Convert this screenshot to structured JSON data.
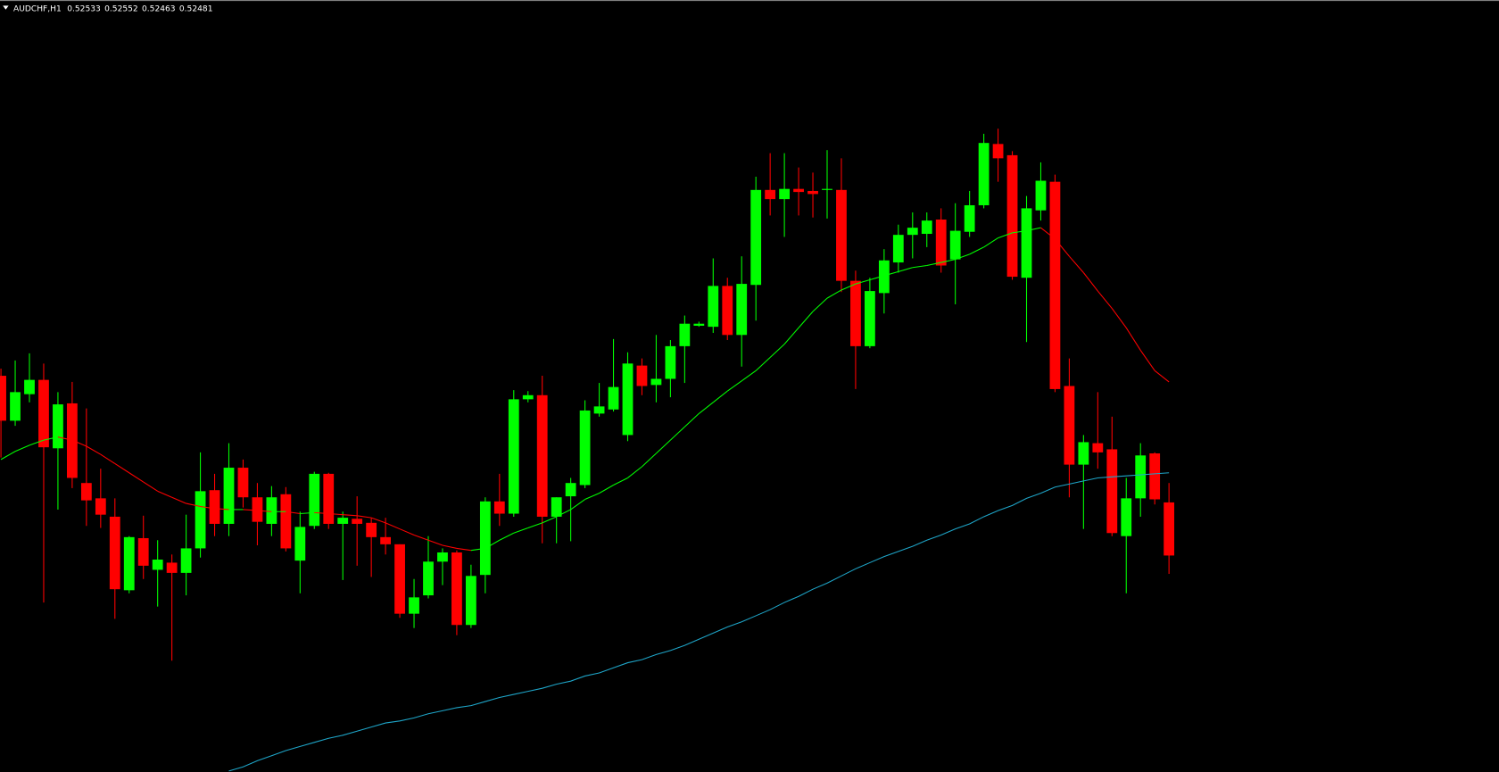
{
  "chart_data": {
    "type": "candlestick",
    "title": "AUDCHF,H1",
    "up_color": "#00ff00",
    "down_color": "#ff0000",
    "background": "#000000",
    "ylim": [
      0.52269,
      0.53025
    ],
    "open": [
      0.52657,
      0.52613,
      0.52639,
      0.52653,
      0.52586,
      0.5263,
      0.52552,
      0.52537,
      0.52519,
      0.52447,
      0.52498,
      0.52467,
      0.52474,
      0.52464,
      0.52488,
      0.52545,
      0.52512,
      0.52567,
      0.52538,
      0.52512,
      0.52541,
      0.52476,
      0.5251,
      0.52561,
      0.52512,
      0.52517,
      0.52513,
      0.52499,
      0.52492,
      0.52424,
      0.52442,
      0.52475,
      0.52484,
      0.52413,
      0.52462,
      0.52534,
      0.52522,
      0.52634,
      0.52638,
      0.52519,
      0.52539,
      0.5255,
      0.5262,
      0.52624,
      0.52599,
      0.52667,
      0.52648,
      0.52654,
      0.52686,
      0.52706,
      0.52705,
      0.52745,
      0.52697,
      0.52746,
      0.52839,
      0.5283,
      0.5284,
      0.52838,
      0.52839,
      0.52839,
      0.5275,
      0.52686,
      0.52738,
      0.52768,
      0.52795,
      0.52796,
      0.5281,
      0.52771,
      0.52798,
      0.52824,
      0.52884,
      0.52873,
      0.52753,
      0.52819,
      0.52847,
      0.52647,
      0.5257,
      0.52591,
      0.52585,
      0.525,
      0.52537,
      0.52581,
      0.52533
    ],
    "high": [
      0.52664,
      0.52672,
      0.52679,
      0.52669,
      0.52641,
      0.52651,
      0.52625,
      0.52566,
      0.52537,
      0.525,
      0.5252,
      0.52496,
      0.52482,
      0.52521,
      0.52582,
      0.52561,
      0.52591,
      0.52575,
      0.52552,
      0.52549,
      0.52548,
      0.52524,
      0.52563,
      0.52562,
      0.52524,
      0.52539,
      0.52518,
      0.52518,
      0.52492,
      0.52458,
      0.525,
      0.52488,
      0.52486,
      0.52472,
      0.52538,
      0.52561,
      0.52643,
      0.52642,
      0.52657,
      0.52538,
      0.52557,
      0.52633,
      0.5265,
      0.52693,
      0.5268,
      0.52674,
      0.52697,
      0.52692,
      0.52716,
      0.5271,
      0.52772,
      0.52753,
      0.52774,
      0.52852,
      0.52875,
      0.52875,
      0.52861,
      0.52856,
      0.52878,
      0.5287,
      0.5276,
      0.52753,
      0.52781,
      0.52805,
      0.52817,
      0.52817,
      0.52821,
      0.52826,
      0.52838,
      0.52894,
      0.52899,
      0.52877,
      0.52833,
      0.52866,
      0.52854,
      0.52674,
      0.52599,
      0.52641,
      0.52617,
      0.52557,
      0.52591,
      0.52582,
      0.52552
    ],
    "low": [
      0.52577,
      0.52608,
      0.52631,
      0.52435,
      0.52526,
      0.52547,
      0.5251,
      0.52508,
      0.52419,
      0.52444,
      0.52458,
      0.52431,
      0.52378,
      0.52442,
      0.52479,
      0.525,
      0.525,
      0.52528,
      0.52491,
      0.525,
      0.52485,
      0.52444,
      0.52507,
      0.52507,
      0.52457,
      0.52471,
      0.5246,
      0.52482,
      0.5242,
      0.5241,
      0.52439,
      0.52452,
      0.52403,
      0.5241,
      0.52444,
      0.5251,
      0.52519,
      0.52631,
      0.52493,
      0.52493,
      0.52495,
      0.52547,
      0.52617,
      0.52622,
      0.52593,
      0.52638,
      0.52631,
      0.52636,
      0.5265,
      0.52705,
      0.52699,
      0.52692,
      0.52666,
      0.52711,
      0.52814,
      0.52793,
      0.52814,
      0.52812,
      0.52811,
      0.52739,
      0.52644,
      0.52684,
      0.52718,
      0.52758,
      0.52772,
      0.52783,
      0.52758,
      0.52727,
      0.52793,
      0.52821,
      0.52847,
      0.52751,
      0.5269,
      0.52809,
      0.52641,
      0.52538,
      0.52507,
      0.52566,
      0.525,
      0.52444,
      0.52519,
      0.52531,
      0.52463
    ],
    "close": [
      0.52613,
      0.52641,
      0.52653,
      0.52587,
      0.52629,
      0.52557,
      0.52535,
      0.52521,
      0.52448,
      0.52499,
      0.52471,
      0.52477,
      0.52464,
      0.52488,
      0.52544,
      0.52512,
      0.52567,
      0.52538,
      0.52514,
      0.52538,
      0.52488,
      0.52509,
      0.52561,
      0.52512,
      0.52518,
      0.52512,
      0.52499,
      0.52492,
      0.52424,
      0.5244,
      0.52475,
      0.52484,
      0.52413,
      0.52461,
      0.52534,
      0.52522,
      0.52634,
      0.52638,
      0.52519,
      0.52538,
      0.52552,
      0.52623,
      0.52627,
      0.52646,
      0.52669,
      0.52647,
      0.52654,
      0.52686,
      0.52708,
      0.52708,
      0.52745,
      0.52697,
      0.52747,
      0.52839,
      0.5283,
      0.5284,
      0.52837,
      0.52835,
      0.5284,
      0.5275,
      0.52686,
      0.5274,
      0.5277,
      0.52795,
      0.52802,
      0.52809,
      0.52765,
      0.52799,
      0.52824,
      0.52885,
      0.5287,
      0.52754,
      0.52821,
      0.52848,
      0.52644,
      0.5257,
      0.52592,
      0.52582,
      0.52503,
      0.52537,
      0.52579,
      0.52536,
      0.52481
    ],
    "lines": [
      {
        "up_color": "#00ff00",
        "down_color": "#ff0000",
        "values": [
          0.52575,
          0.52583,
          0.52589,
          0.52594,
          0.52597,
          0.52594,
          0.52588,
          0.5258,
          0.52571,
          0.52562,
          0.52553,
          0.52544,
          0.52538,
          0.52532,
          0.52529,
          0.52527,
          0.52526,
          0.52526,
          0.52525,
          0.52524,
          0.52524,
          0.52522,
          0.52523,
          0.52522,
          0.52521,
          0.5252,
          0.52518,
          0.52513,
          0.52507,
          0.52501,
          0.52496,
          0.52491,
          0.52488,
          0.52486,
          0.52488,
          0.52496,
          0.52503,
          0.52508,
          0.52513,
          0.52519,
          0.52526,
          0.52536,
          0.52542,
          0.5255,
          0.52557,
          0.52568,
          0.52581,
          0.52594,
          0.52607,
          0.5262,
          0.52631,
          0.52642,
          0.52652,
          0.52662,
          0.52675,
          0.52688,
          0.52704,
          0.5272,
          0.52733,
          0.52741,
          0.52747,
          0.52751,
          0.52755,
          0.52759,
          0.52763,
          0.52765,
          0.52768,
          0.52771,
          0.52776,
          0.52783,
          0.52792,
          0.52797,
          0.52799,
          0.52802,
          0.52791,
          0.52774,
          0.52758,
          0.5274,
          0.52723,
          0.52704,
          0.52682,
          0.52662,
          0.52651
        ]
      },
      {
        "color": "#1ea5c8",
        "values": [
          null,
          null,
          null,
          null,
          null,
          null,
          null,
          null,
          null,
          null,
          null,
          null,
          null,
          null,
          null,
          null,
          0.5227,
          0.52274,
          0.5228,
          0.52285,
          0.5229,
          0.52294,
          0.52298,
          0.52302,
          0.52305,
          0.52309,
          0.52313,
          0.52317,
          0.52319,
          0.52322,
          0.52326,
          0.52329,
          0.52332,
          0.52334,
          0.52338,
          0.52342,
          0.52345,
          0.52348,
          0.52351,
          0.52355,
          0.52358,
          0.52363,
          0.52366,
          0.52371,
          0.52376,
          0.52379,
          0.52384,
          0.52388,
          0.52393,
          0.52399,
          0.52405,
          0.52411,
          0.52416,
          0.52422,
          0.52428,
          0.52435,
          0.52441,
          0.52448,
          0.52454,
          0.52461,
          0.52468,
          0.52474,
          0.5248,
          0.52485,
          0.5249,
          0.52496,
          0.52501,
          0.52507,
          0.52512,
          0.52519,
          0.52525,
          0.5253,
          0.52537,
          0.52542,
          0.52548,
          0.52551,
          0.52554,
          0.52557,
          0.52558,
          0.52559,
          0.5256,
          0.52561,
          0.52562
        ]
      }
    ]
  }
}
